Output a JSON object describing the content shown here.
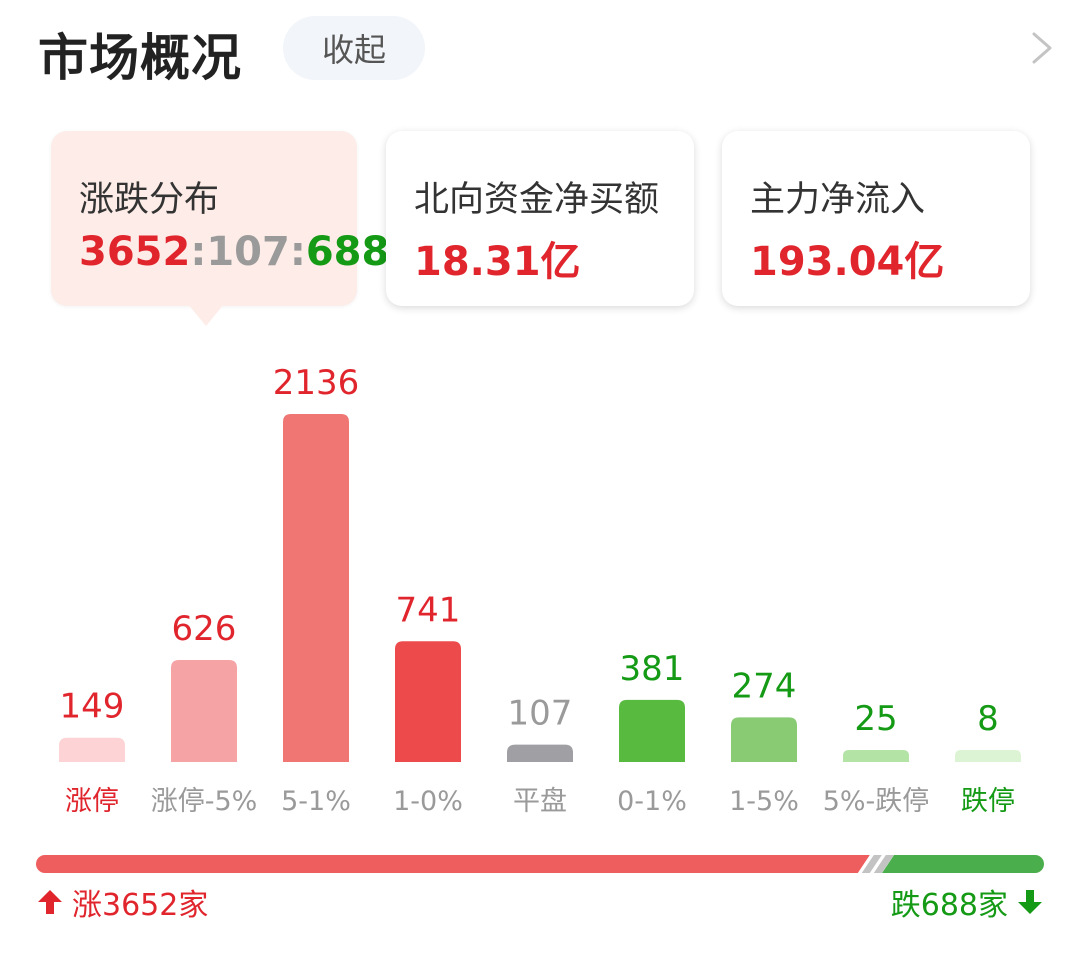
{
  "header": {
    "title": "市场概况",
    "collapse_label": "收起"
  },
  "cards": [
    {
      "label": "涨跌分布",
      "up": "3652",
      "sep1": ":",
      "flat": "107",
      "sep2": ":",
      "down": "688"
    },
    {
      "label": "北向资金净买额",
      "value": "18.31亿"
    },
    {
      "label": "主力净流入",
      "value": "193.04亿"
    }
  ],
  "colors": {
    "red": "#e0252d",
    "green": "#159a16",
    "gray": "#9a9a9a",
    "active_card_bg": "#fdece7"
  },
  "chart_data": {
    "type": "bar",
    "categories": [
      "涨停",
      "涨停-5%",
      "5-1%",
      "1-0%",
      "平盘",
      "0-1%",
      "1-5%",
      "5%-跌停",
      "跌停"
    ],
    "values": [
      149,
      626,
      2136,
      741,
      107,
      381,
      274,
      25,
      8
    ],
    "value_labels": [
      "149",
      "626",
      "2136",
      "741",
      "107",
      "381",
      "274",
      "25",
      "8"
    ],
    "bar_colors": [
      "#fdd3d5",
      "#f5a3a5",
      "#ef7673",
      "#ed4a4c",
      "#a09fa3",
      "#58bb40",
      "#88cb73",
      "#b3e3a5",
      "#dcf3d4"
    ],
    "text_colors": [
      "#e0252d",
      "#e0252d",
      "#e0252d",
      "#e0252d",
      "#9a9a9a",
      "#159a16",
      "#159a16",
      "#159a16",
      "#159a16"
    ],
    "cat_colors": [
      "#e0252d",
      "#9a9a9a",
      "#9a9a9a",
      "#9a9a9a",
      "#9a9a9a",
      "#9a9a9a",
      "#9a9a9a",
      "#9a9a9a",
      "#159a16"
    ],
    "ylim": [
      0,
      2136
    ],
    "grid": false,
    "legend": "none"
  },
  "ratio_bar": {
    "up_count": 3652,
    "flat_count": 107,
    "down_count": 688
  },
  "footer": {
    "up_text": "涨3652家",
    "down_text": "跌688家"
  }
}
